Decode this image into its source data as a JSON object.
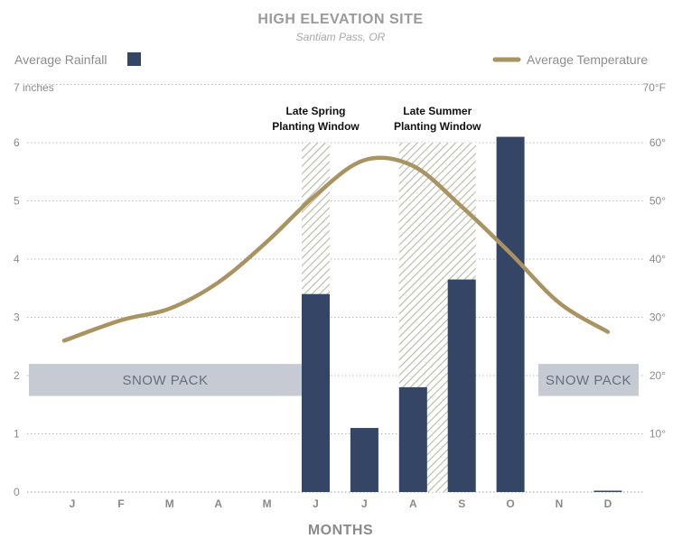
{
  "chart_data": {
    "type": "bar",
    "title": "HIGH ELEVATION SITE",
    "subtitle": "Santiam Pass, OR",
    "xlabel": "MONTHS",
    "ylabel_left_top": "7 inches",
    "ylabel_right_top": "70°F",
    "categories": [
      "J",
      "F",
      "M",
      "A",
      "M",
      "J",
      "J",
      "A",
      "S",
      "O",
      "N",
      "D"
    ],
    "ylim": [
      0,
      7
    ],
    "y_ticks_left": [
      "0",
      "1",
      "2",
      "3",
      "4",
      "5",
      "6"
    ],
    "y_ticks_right": [
      "10°",
      "20°",
      "30°",
      "40°",
      "50°",
      "60°"
    ],
    "y_ticks_right_values": [
      10,
      20,
      30,
      40,
      50,
      60
    ],
    "y2lim": [
      0,
      70
    ],
    "series": [
      {
        "name": "Average Rainfall",
        "type": "bar",
        "color": "#344565",
        "values": [
          0,
          0,
          0,
          0,
          0,
          3.4,
          1.1,
          1.8,
          3.65,
          6.1,
          0,
          0.02
        ]
      },
      {
        "name": "Average Temperature",
        "type": "line",
        "color": "#a99360",
        "values": [
          26,
          29.5,
          31.5,
          36,
          43,
          51,
          57,
          56,
          49,
          41,
          32.5,
          27.5
        ]
      }
    ],
    "planting_windows": [
      {
        "line1": "Late Spring",
        "line2": "Planting Window",
        "months": [
          5,
          5
        ],
        "top": 6
      },
      {
        "line1": "Late Summer",
        "line2": "Planting Window",
        "months": [
          7,
          8
        ],
        "top": 6
      }
    ],
    "snow_pack": [
      {
        "label": "SNOW PACK",
        "from_month": 0,
        "to_month": 5,
        "y_range": [
          1.65,
          2.2
        ]
      },
      {
        "label": "SNOW PACK",
        "from_month": 10,
        "to_month": 11,
        "y_range": [
          1.65,
          2.2
        ]
      }
    ],
    "grid": true,
    "legend": {
      "rainfall": "top-left",
      "temperature": "top-right"
    },
    "colors": {
      "bar": "#344565",
      "line": "#a99360",
      "hatch": "#b5b9a3",
      "snow": "#c6cad3",
      "snow_text": "#666f80"
    }
  }
}
